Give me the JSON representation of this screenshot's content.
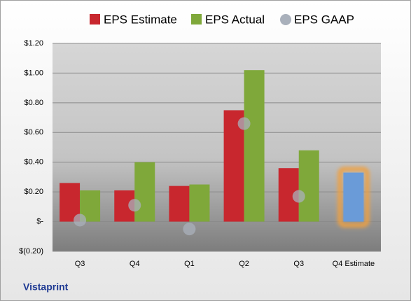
{
  "chart_data": {
    "type": "bar",
    "categories": [
      "Q3",
      "Q4",
      "Q1",
      "Q2",
      "Q3",
      "Q4 Estimate"
    ],
    "series": [
      {
        "name": "EPS Estimate",
        "color": "#c8272e",
        "style": "bar",
        "values": [
          0.26,
          0.21,
          0.24,
          0.75,
          0.36,
          0.33
        ],
        "point_colors": [
          "#c8272e",
          "#c8272e",
          "#c8272e",
          "#c8272e",
          "#c8272e",
          "#6a9bd8"
        ]
      },
      {
        "name": "EPS Actual",
        "color": "#7fa83a",
        "style": "bar",
        "values": [
          0.21,
          0.4,
          0.25,
          1.02,
          0.48,
          null
        ]
      },
      {
        "name": "EPS GAAP",
        "color": "#a9b0bb",
        "style": "dot",
        "values": [
          0.01,
          0.11,
          -0.05,
          0.66,
          0.17,
          null
        ]
      }
    ],
    "ylim": [
      -0.2,
      1.2
    ],
    "yticks": [
      {
        "value": -0.2,
        "label": "$(0.20)"
      },
      {
        "value": 0,
        "label": "$-"
      },
      {
        "value": 0.2,
        "label": "$0.20"
      },
      {
        "value": 0.4,
        "label": "$0.40"
      },
      {
        "value": 0.6,
        "label": "$0.60"
      },
      {
        "value": 0.8,
        "label": "$0.80"
      },
      {
        "value": 1.0,
        "label": "$1.00"
      },
      {
        "value": 1.2,
        "label": "$1.20"
      }
    ],
    "grid": true,
    "legend": "top",
    "footer": "Vistaprint"
  }
}
